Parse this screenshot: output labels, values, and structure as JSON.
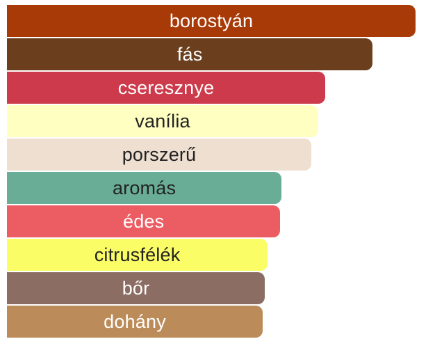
{
  "chart_data": {
    "type": "bar",
    "orientation": "horizontal",
    "categories": [
      "borostyán",
      "fás",
      "cseresznye",
      "vanília",
      "porszerű",
      "aromás",
      "édes",
      "citrusfélék",
      "bőr",
      "dohány"
    ],
    "values": [
      100,
      89.5,
      77.9,
      76.2,
      74.5,
      67.2,
      66.9,
      63.8,
      63.1,
      62.6
    ],
    "colors": [
      "#a83a07",
      "#6b3f1e",
      "#cc3a4b",
      "#ffffc2",
      "#eedfd0",
      "#69ad96",
      "#eb5c63",
      "#fbfd66",
      "#8c6d63",
      "#bb8b59"
    ],
    "label_colors": [
      "#ffffff",
      "#ffffff",
      "#ffffff",
      "#222222",
      "#222222",
      "#222222",
      "#ffffff",
      "#222222",
      "#ffffff",
      "#ffffff"
    ],
    "xlim": [
      0,
      100
    ],
    "title": "",
    "xlabel": "",
    "ylabel": "",
    "grid": false,
    "legend": "none"
  }
}
